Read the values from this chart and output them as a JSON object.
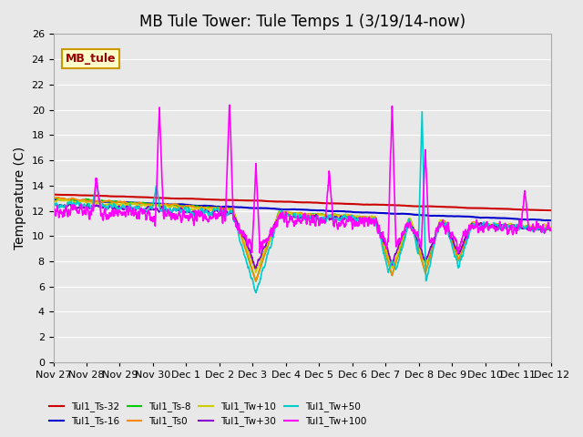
{
  "title": "MB Tule Tower: Tule Temps 1 (3/19/14-now)",
  "ylabel": "Temperature (C)",
  "ylim": [
    0,
    26
  ],
  "yticks": [
    0,
    2,
    4,
    6,
    8,
    10,
    12,
    14,
    16,
    18,
    20,
    22,
    24,
    26
  ],
  "background_color": "#e8e8e8",
  "plot_bg_color": "#e8e8e8",
  "legend_box_label": "MB_tule",
  "legend_box_color": "#ffffcc",
  "legend_box_border": "#cc9900",
  "legend_box_text": "#990000",
  "series": [
    {
      "label": "Tul1_Ts-32",
      "color": "#cc0000",
      "lw": 1.5
    },
    {
      "label": "Tul1_Ts-16",
      "color": "#0000cc",
      "lw": 1.5
    },
    {
      "label": "Tul1_Ts-8",
      "color": "#00cc00",
      "lw": 1.2
    },
    {
      "label": "Tul1_Ts0",
      "color": "#ff8800",
      "lw": 1.2
    },
    {
      "label": "Tul1_Tw+10",
      "color": "#cccc00",
      "lw": 1.2
    },
    {
      "label": "Tul1_Tw+30",
      "color": "#8800cc",
      "lw": 1.2
    },
    {
      "label": "Tul1_Tw+50",
      "color": "#00cccc",
      "lw": 1.2
    },
    {
      "label": "Tul1_Tw+100",
      "color": "#ff00ff",
      "lw": 1.2
    }
  ],
  "xtick_labels": [
    "Nov 27",
    "Nov 28",
    "Nov 29",
    "Nov 30",
    "Dec 1",
    "Dec 2",
    "Dec 3",
    "Dec 4",
    "Dec 5",
    "Dec 6",
    "Dec 7",
    "Dec 8",
    "Dec 9",
    "Dec 10",
    "Dec 11",
    "Dec 12"
  ],
  "n_days": 15,
  "title_fontsize": 12,
  "axis_fontsize": 10,
  "tick_fontsize": 8
}
